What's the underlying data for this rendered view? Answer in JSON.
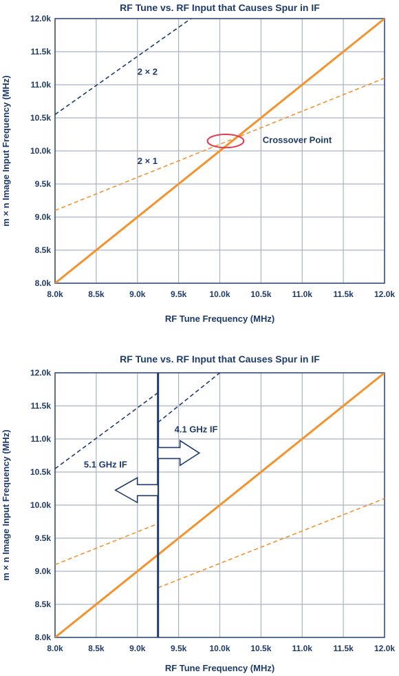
{
  "chart_data": [
    {
      "type": "line",
      "title": "RF Tune vs. RF Input that Causes Spur in IF",
      "xlabel": "RF Tune Frequency (MHz)",
      "ylabel": "m × n Image Input Frequency (MHz)",
      "xlim": [
        8000,
        12000
      ],
      "ylim": [
        8000,
        12000
      ],
      "xticks": [
        8000,
        8500,
        9000,
        9500,
        10000,
        10500,
        11000,
        11500,
        12000
      ],
      "xtick_labels": [
        "8.0k",
        "8.5k",
        "9.0k",
        "9.5k",
        "10.0k",
        "10.5k",
        "11.0k",
        "11.5k",
        "12.0k"
      ],
      "yticks": [
        8000,
        8500,
        9000,
        9500,
        10000,
        10500,
        11000,
        11500,
        12000
      ],
      "ytick_labels": [
        "8.0k",
        "8.5k",
        "9.0k",
        "9.5k",
        "10.0k",
        "10.5k",
        "11.0k",
        "11.5k",
        "12.0k"
      ],
      "grid": true,
      "series": [
        {
          "x": [
            8000,
            12000
          ],
          "y": [
            8000,
            12000
          ],
          "color": "#f4922b",
          "style": "solid"
        },
        {
          "x": [
            8000,
            12000
          ],
          "y": [
            9100,
            11100
          ],
          "color": "#f4922b",
          "style": "dashed"
        },
        {
          "x": [
            8000,
            9650
          ],
          "y": [
            10550,
            12000
          ],
          "color": "#1d3a6b",
          "style": "dashed"
        }
      ],
      "annotations": [
        {
          "text": "2 × 2",
          "x": 9000,
          "y": 11150
        },
        {
          "text": "2 × 1",
          "x": 9000,
          "y": 9800
        },
        {
          "text": "Crossover Point",
          "x": 10520,
          "y": 10120
        },
        {
          "type": "ellipse",
          "cx": 10070,
          "cy": 10150,
          "rx": 220,
          "ry": 100,
          "color": "#e03c4e"
        }
      ]
    },
    {
      "type": "line",
      "title": "RF Tune vs. RF Input that Causes Spur in IF",
      "xlabel": "RF Tune Frequency (MHz)",
      "ylabel": "m × n Image Input Frequency (MHz)",
      "xlim": [
        8000,
        12000
      ],
      "ylim": [
        8000,
        12000
      ],
      "xticks": [
        8000,
        8500,
        9000,
        9500,
        10000,
        10500,
        11000,
        11500,
        12000
      ],
      "xtick_labels": [
        "8.0k",
        "8.5k",
        "9.0k",
        "9.5k",
        "10.0k",
        "10.5k",
        "11.0k",
        "11.5k",
        "12.0k"
      ],
      "yticks": [
        8000,
        8500,
        9000,
        9500,
        10000,
        10500,
        11000,
        11500,
        12000
      ],
      "ytick_labels": [
        "8.0k",
        "8.5k",
        "9.0k",
        "9.5k",
        "10.0k",
        "10.5k",
        "11.0k",
        "11.5k",
        "12.0k"
      ],
      "grid": true,
      "divider_x": 9250,
      "series": [
        {
          "x": [
            8000,
            12000
          ],
          "y": [
            8000,
            12000
          ],
          "color": "#f4922b",
          "style": "solid"
        },
        {
          "x": [
            8000,
            9250
          ],
          "y": [
            9100,
            9720
          ],
          "color": "#f4922b",
          "style": "dashed"
        },
        {
          "x": [
            9250,
            12000
          ],
          "y": [
            8750,
            10100
          ],
          "color": "#f4922b",
          "style": "dashed"
        },
        {
          "x": [
            8000,
            9250
          ],
          "y": [
            10550,
            11700
          ],
          "color": "#1d3a6b",
          "style": "dashed"
        },
        {
          "x": [
            9250,
            10000
          ],
          "y": [
            11250,
            12000
          ],
          "color": "#1d3a6b",
          "style": "dashed"
        }
      ],
      "annotations": [
        {
          "text": "4.1 GHz IF",
          "x": 9450,
          "y": 11100,
          "arrow": "right"
        },
        {
          "text": "5.1 GHz IF",
          "x": 8350,
          "y": 10570,
          "arrow": "left"
        }
      ]
    }
  ]
}
